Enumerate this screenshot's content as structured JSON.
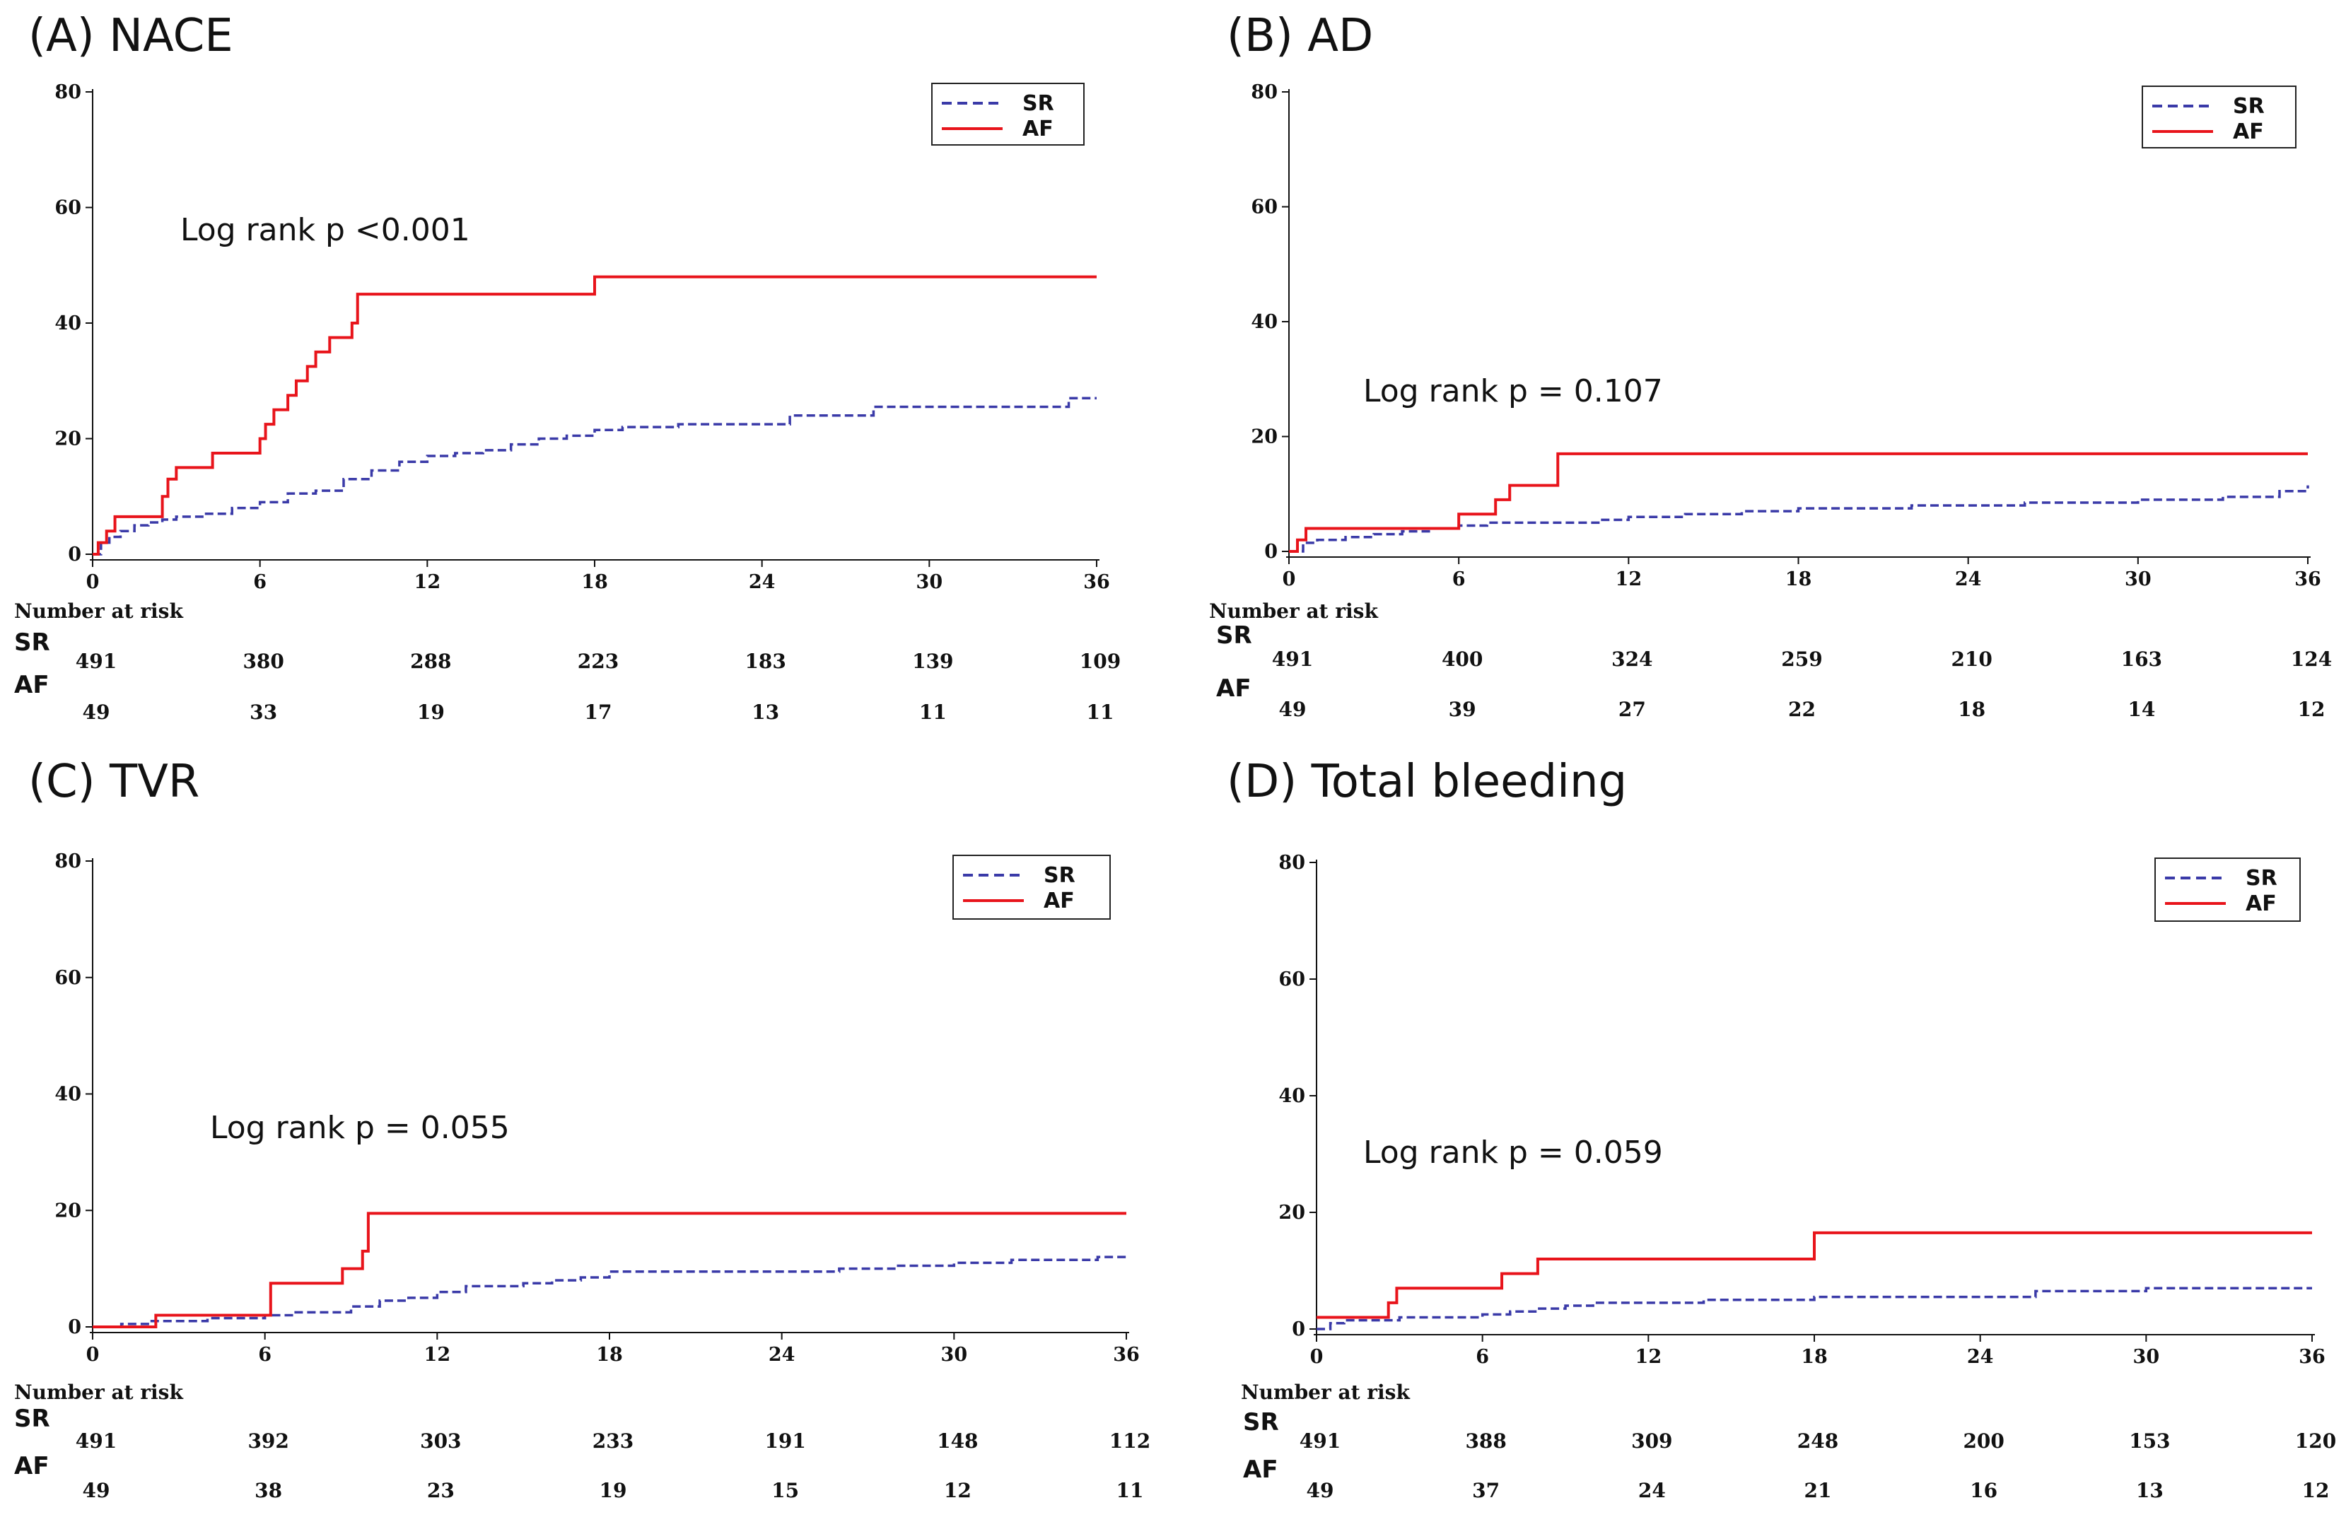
{
  "chart_data": [
    {
      "type": "line",
      "title": "(A) NACE",
      "xlabel": "",
      "ylabel": "",
      "xlim": [
        0,
        36
      ],
      "ylim": [
        0,
        80
      ],
      "xticks": [
        0,
        6,
        12,
        18,
        24,
        30,
        36
      ],
      "yticks": [
        0,
        20,
        40,
        60,
        80
      ],
      "annotation": "Log rank p <0.001",
      "legend": [
        {
          "name": "SR",
          "style": "dashed",
          "color": "#3a3aa8"
        },
        {
          "name": "AF",
          "style": "solid",
          "color": "#e8141b"
        }
      ],
      "series": [
        {
          "name": "SR",
          "color": "#3a3aa8",
          "x": [
            0,
            0.3,
            0.6,
            1,
            1.5,
            2,
            2.5,
            3,
            4,
            5,
            6,
            7,
            8,
            9,
            10,
            11,
            12,
            13,
            14,
            15,
            16,
            17,
            18,
            19,
            20,
            21,
            22,
            23,
            24,
            25,
            26,
            27,
            28,
            29,
            30,
            31,
            32,
            33,
            34,
            35,
            36
          ],
          "y": [
            0,
            2,
            3,
            4,
            5,
            5.5,
            6,
            6.5,
            7,
            8,
            9,
            10.5,
            11,
            13,
            14.5,
            16,
            17,
            17.5,
            18,
            19,
            20,
            20.5,
            21.5,
            22,
            22,
            22.5,
            22.5,
            22.5,
            22.5,
            24,
            24,
            24,
            25.5,
            25.5,
            25.5,
            25.5,
            25.5,
            25.5,
            25.5,
            27,
            27
          ]
        },
        {
          "name": "AF",
          "color": "#e8141b",
          "x": [
            0,
            0.2,
            0.5,
            0.8,
            2.5,
            2.7,
            3,
            4.3,
            6,
            6.2,
            6.5,
            7,
            7.3,
            7.7,
            8,
            8.5,
            9.3,
            9.5,
            18,
            36
          ],
          "y": [
            0,
            2,
            4,
            6.5,
            10,
            13,
            15,
            17.5,
            20,
            22.5,
            25,
            27.5,
            30,
            32.5,
            35,
            37.5,
            40,
            45,
            48,
            48
          ]
        }
      ],
      "risk_table": {
        "title": "Number at risk",
        "times": [
          0,
          6,
          12,
          18,
          24,
          30,
          36
        ],
        "rows": [
          {
            "group": "SR",
            "values": [
              "491",
              "380",
              "288",
              "223",
              "183",
              "139",
              "109"
            ]
          },
          {
            "group": "AF",
            "values": [
              "49",
              "33",
              "19",
              "17",
              "13",
              "11",
              "11"
            ]
          }
        ]
      }
    },
    {
      "type": "line",
      "title": "(B) AD",
      "xlabel": "",
      "ylabel": "",
      "xlim": [
        0,
        36
      ],
      "ylim": [
        0,
        80
      ],
      "xticks": [
        0,
        6,
        12,
        18,
        24,
        30,
        36
      ],
      "yticks": [
        0,
        20,
        40,
        60,
        80
      ],
      "annotation": "Log rank p = 0.107",
      "legend": [
        {
          "name": "SR",
          "style": "dashed",
          "color": "#3a3aa8"
        },
        {
          "name": "AF",
          "style": "solid",
          "color": "#e8141b"
        }
      ],
      "series": [
        {
          "name": "SR",
          "color": "#3a3aa8",
          "x": [
            0,
            0.5,
            1,
            2,
            3,
            4,
            5,
            6,
            7,
            8,
            9,
            10,
            11,
            12,
            14,
            16,
            18,
            20,
            22,
            24,
            26,
            28,
            30,
            32,
            33,
            34,
            35,
            36
          ],
          "y": [
            0,
            1.5,
            2,
            2.5,
            3,
            3.5,
            4,
            4.5,
            5,
            5,
            5,
            5,
            5.5,
            6,
            6.5,
            7,
            7.5,
            7.5,
            8,
            8,
            8.5,
            8.5,
            9,
            9,
            9.5,
            9.5,
            10.5,
            11.5
          ]
        },
        {
          "name": "AF",
          "color": "#e8141b",
          "x": [
            0,
            0.3,
            0.6,
            6,
            7.3,
            7.8,
            9.5,
            36
          ],
          "y": [
            0,
            2,
            4,
            6.5,
            9,
            11.5,
            17,
            17
          ]
        }
      ],
      "risk_table": {
        "title": "Number at risk",
        "times": [
          0,
          6,
          12,
          18,
          24,
          30,
          36
        ],
        "rows": [
          {
            "group": "SR",
            "values": [
              "491",
              "400",
              "324",
              "259",
              "210",
              "163",
              "124"
            ]
          },
          {
            "group": "AF",
            "values": [
              "49",
              "39",
              "27",
              "22",
              "18",
              "14",
              "12"
            ]
          }
        ]
      }
    },
    {
      "type": "line",
      "title": "(C) TVR",
      "xlabel": "",
      "ylabel": "",
      "xlim": [
        0,
        36
      ],
      "ylim": [
        0,
        80
      ],
      "xticks": [
        0,
        6,
        12,
        18,
        24,
        30,
        36
      ],
      "yticks": [
        0,
        20,
        40,
        60,
        80
      ],
      "annotation": "Log rank p = 0.055",
      "legend": [
        {
          "name": "SR",
          "style": "dashed",
          "color": "#3a3aa8"
        },
        {
          "name": "AF",
          "style": "solid",
          "color": "#e8141b"
        }
      ],
      "series": [
        {
          "name": "SR",
          "color": "#3a3aa8",
          "x": [
            0,
            1,
            2,
            3,
            4,
            5,
            6,
            7,
            8,
            9,
            10,
            11,
            12,
            13,
            14,
            15,
            16,
            17,
            18,
            20,
            22,
            24,
            26,
            28,
            30,
            32,
            34,
            35,
            36
          ],
          "y": [
            0,
            0.5,
            1,
            1,
            1.5,
            1.5,
            2,
            2.5,
            2.5,
            3.5,
            4.5,
            5,
            6,
            7,
            7,
            7.5,
            8,
            8.5,
            9.5,
            9.5,
            9.5,
            9.5,
            10,
            10.5,
            11,
            11.5,
            11.5,
            12,
            12
          ]
        },
        {
          "name": "AF",
          "color": "#e8141b",
          "x": [
            0,
            2.2,
            6.2,
            8.7,
            9.4,
            9.6,
            36
          ],
          "y": [
            0,
            2,
            7.5,
            10,
            13,
            19.5,
            19.5
          ]
        }
      ],
      "risk_table": {
        "title": "Number at risk",
        "times": [
          0,
          6,
          12,
          18,
          24,
          30,
          36
        ],
        "rows": [
          {
            "group": "SR",
            "values": [
              "491",
              "392",
              "303",
              "233",
              "191",
              "148",
              "112"
            ]
          },
          {
            "group": "AF",
            "values": [
              "49",
              "38",
              "23",
              "19",
              "15",
              "12",
              "11"
            ]
          }
        ]
      }
    },
    {
      "type": "line",
      "title": "(D) Total bleeding",
      "xlabel": "",
      "ylabel": "",
      "xlim": [
        0,
        36
      ],
      "ylim": [
        0,
        80
      ],
      "xticks": [
        0,
        6,
        12,
        18,
        24,
        30,
        36
      ],
      "yticks": [
        0,
        20,
        40,
        60,
        80
      ],
      "annotation": "Log rank p = 0.059",
      "legend": [
        {
          "name": "SR",
          "style": "dashed",
          "color": "#3a3aa8"
        },
        {
          "name": "AF",
          "style": "solid",
          "color": "#e8141b"
        }
      ],
      "series": [
        {
          "name": "SR",
          "color": "#3a3aa8",
          "x": [
            0,
            0.5,
            1,
            2,
            3,
            4,
            5,
            6,
            7,
            8,
            9,
            10,
            12,
            14,
            16,
            18,
            20,
            22,
            24,
            26,
            28,
            30,
            32,
            34,
            36
          ],
          "y": [
            0,
            1,
            1.5,
            1.5,
            2,
            2,
            2,
            2.5,
            3,
            3.5,
            4,
            4.5,
            4.5,
            5,
            5,
            5.5,
            5.5,
            5.5,
            5.5,
            6.5,
            6.5,
            7,
            7,
            7,
            7
          ]
        },
        {
          "name": "AF",
          "color": "#e8141b",
          "x": [
            0,
            2.6,
            2.9,
            6.7,
            8,
            18,
            36
          ],
          "y": [
            2,
            4.5,
            7,
            9.5,
            12,
            16.5,
            16.5
          ]
        }
      ],
      "risk_table": {
        "title": "Number at risk",
        "times": [
          0,
          6,
          12,
          18,
          24,
          30,
          36
        ],
        "rows": [
          {
            "group": "SR",
            "values": [
              "491",
              "388",
              "309",
              "248",
              "200",
              "153",
              "120"
            ]
          },
          {
            "group": "AF",
            "values": [
              "49",
              "37",
              "24",
              "21",
              "16",
              "13",
              "12"
            ]
          }
        ]
      }
    }
  ]
}
